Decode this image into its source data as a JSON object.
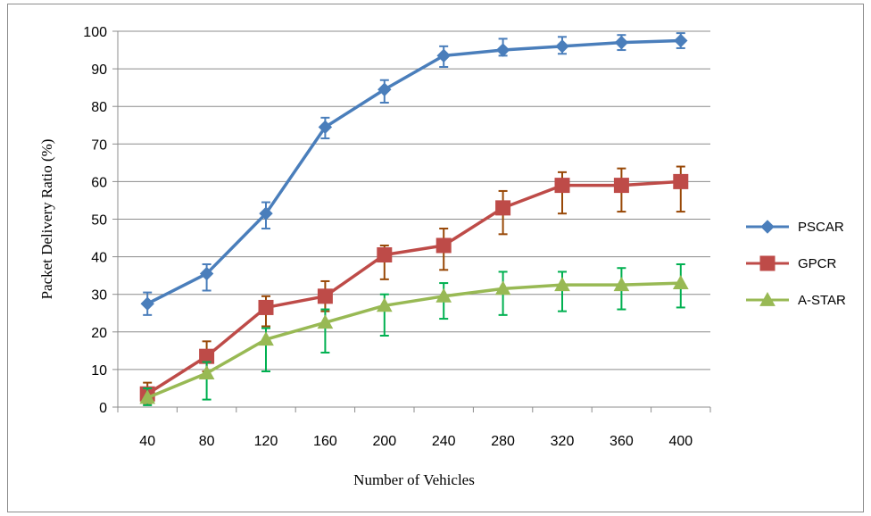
{
  "chart_data": {
    "type": "line",
    "xlabel": "Number of Vehicles",
    "ylabel": "Packet Delivery Ratio (%)",
    "categories": [
      "40",
      "80",
      "120",
      "160",
      "200",
      "240",
      "280",
      "320",
      "360",
      "400"
    ],
    "ylim": [
      0,
      100
    ],
    "yticks": [
      0,
      10,
      20,
      30,
      40,
      50,
      60,
      70,
      80,
      90,
      100
    ],
    "grid": true,
    "legend_position": "right",
    "series": [
      {
        "name": "PSCAR",
        "marker": "diamond",
        "color": "#4a7ebb",
        "error_color": "#4a7ebb",
        "values": [
          27.5,
          35.5,
          51.5,
          74.5,
          84.5,
          93.5,
          95,
          96,
          97,
          97.5
        ],
        "err_low": [
          24.5,
          31,
          47.5,
          71.5,
          81,
          90.5,
          93.5,
          94,
          95,
          95.5
        ],
        "err_high": [
          30.5,
          38,
          54.5,
          77,
          87,
          96,
          98,
          98.5,
          99,
          99.5
        ]
      },
      {
        "name": "GPCR",
        "marker": "square",
        "color": "#be4b48",
        "error_color": "#984807",
        "values": [
          3.5,
          13.5,
          26.5,
          29.5,
          40.5,
          43,
          53,
          59,
          59,
          60
        ],
        "err_low": [
          1,
          9.5,
          21.5,
          25.5,
          34,
          36.5,
          46,
          51.5,
          52,
          52
        ],
        "err_high": [
          6.5,
          17.5,
          29.5,
          33.5,
          43,
          47.5,
          57.5,
          62.5,
          63.5,
          64
        ]
      },
      {
        "name": "A-STAR",
        "marker": "triangle",
        "color": "#98b954",
        "error_color": "#00b050",
        "values": [
          2.5,
          9,
          18,
          22.5,
          27,
          29.5,
          31.5,
          32.5,
          32.5,
          33
        ],
        "err_low": [
          0.5,
          2,
          9.5,
          14.5,
          19,
          23.5,
          24.5,
          25.5,
          26,
          26.5
        ],
        "err_high": [
          5,
          12,
          21,
          26,
          30,
          33,
          36,
          36,
          37,
          38
        ]
      }
    ]
  }
}
